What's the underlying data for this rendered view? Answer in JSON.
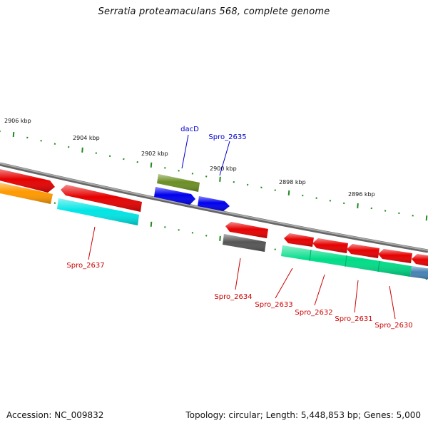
{
  "title": "Serratia proteamaculans 568, complete genome",
  "footer": {
    "accession": "Accession: NC_009832",
    "summary": "Topology: circular; Length: 5,448,853 bp; Genes: 5,000"
  },
  "colors": {
    "backbone": "#888888",
    "tick": "#1f8a1f",
    "label_red": "#cc0000",
    "label_blue": "#0000cc"
  },
  "scale_labels": [
    "2906 kbp",
    "2904 kbp",
    "2902 kbp",
    "2900 kbp",
    "2898 kbp",
    "2896 kbp"
  ],
  "gene_labels": [
    {
      "text": "dacD",
      "color": "#0000cc"
    },
    {
      "text": "Spro_2635",
      "color": "#0000cc"
    },
    {
      "text": "Spro_2637",
      "color": "#cc0000"
    },
    {
      "text": "Spro_2634",
      "color": "#cc0000"
    },
    {
      "text": "Spro_2633",
      "color": "#cc0000"
    },
    {
      "text": "Spro_2632",
      "color": "#cc0000"
    },
    {
      "text": "Spro_2631",
      "color": "#cc0000"
    },
    {
      "text": "Spro_2630",
      "color": "#cc0000"
    }
  ],
  "features": [
    {
      "id": "red-left-outer",
      "color": "#e60000",
      "strand": "+"
    },
    {
      "id": "orange-left",
      "color": "#ff9900",
      "strand": "+"
    },
    {
      "id": "red-2636",
      "color": "#e60000",
      "strand": "+"
    },
    {
      "id": "cyan-2637",
      "color": "#00e5e5",
      "strand": "-"
    },
    {
      "id": "olive-dacd",
      "color": "#6b8e23",
      "strand": "+"
    },
    {
      "id": "blue-dacd",
      "color": "#0000ee",
      "strand": "+"
    },
    {
      "id": "blue-2635",
      "color": "#0000ee",
      "strand": "+"
    },
    {
      "id": "red-2634",
      "color": "#e60000",
      "strand": "+"
    },
    {
      "id": "gray-2634",
      "color": "#555555",
      "strand": "-"
    },
    {
      "id": "red-2633",
      "color": "#e60000",
      "strand": "+"
    },
    {
      "id": "red-2632",
      "color": "#e60000",
      "strand": "+"
    },
    {
      "id": "red-2631",
      "color": "#e60000",
      "strand": "+"
    },
    {
      "id": "red-2630",
      "color": "#e60000",
      "strand": "+"
    },
    {
      "id": "red-right-edge",
      "color": "#e60000",
      "strand": "+"
    },
    {
      "id": "green-operon",
      "color": "#00dd88",
      "strand": "-"
    },
    {
      "id": "steel-right",
      "color": "#4682b4",
      "strand": "-"
    }
  ]
}
